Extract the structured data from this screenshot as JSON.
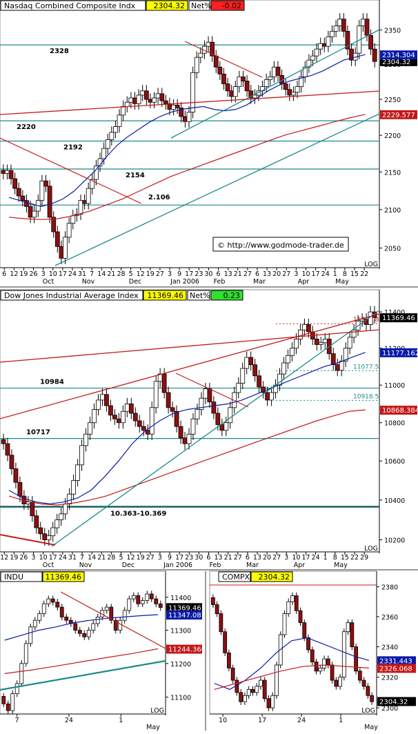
{
  "watermark": "© http://www.godmode-trader.de",
  "colors": {
    "up_candle": "#ffffff",
    "down_candle": "#8b1010",
    "ma_blue": "#0a1aa8",
    "ma_red": "#c41818",
    "teal": "#1b8a8a",
    "value_box_yellow": "#ffff00",
    "net_neg": "#ff2020",
    "net_pos": "#30e030"
  },
  "panels": [
    {
      "id": "nasdaq-daily",
      "title": "Nasdaq Combined Composite Indx",
      "value": "2304.32",
      "net_label": "Net%",
      "net_value": "-0.02",
      "price_tag": "2304.32",
      "ma_tags": [
        {
          "text": "2314.304",
          "color": "#0a1aa8"
        },
        {
          "text": "2229.577",
          "color": "#c41818"
        }
      ],
      "levels": [
        {
          "label": "2328"
        },
        {
          "label": "2220"
        },
        {
          "label": "2192"
        },
        {
          "label": "2154"
        },
        {
          "label": "2.106"
        }
      ],
      "x_ticks": [
        "6",
        "12",
        "19",
        "26",
        "3",
        "10",
        "17",
        "24",
        "31",
        "7",
        "14",
        "21",
        "28",
        "5",
        "12",
        "19",
        "27",
        "3",
        "9",
        "17",
        "23",
        "30",
        "6",
        "13",
        "21",
        "27",
        "6",
        "13",
        "20",
        "27",
        "3",
        "10",
        "17",
        "24",
        "1",
        "8",
        "15",
        "22"
      ],
      "month_labels": [
        "Oct",
        "Nov",
        "Dec",
        "Jan 2006",
        "Feb",
        "Mar",
        "Apr",
        "May"
      ],
      "log_label": "LOG",
      "chart_data": {
        "type": "candlestick",
        "title": "Nasdaq Combined Composite Indx",
        "y_ticks": [
          2050,
          2100,
          2150,
          2200,
          2250,
          2300,
          2350
        ],
        "ylim": [
          2025,
          2380
        ],
        "scale": "log",
        "last_close": 2304.32,
        "net_pct": -0.02,
        "series": [
          {
            "name": "price",
            "values": [
              2148,
              2152,
              2141,
              2128,
              2118,
              2112,
              2104,
              2090,
              2098,
              2112,
              2138,
              2131,
              2090,
              2071,
              2052,
              2037,
              2064,
              2082,
              2092,
              2094,
              2112,
              2108,
              2128,
              2140,
              2158,
              2168,
              2182,
              2194,
              2204,
              2212,
              2228,
              2240,
              2246,
              2252,
              2244,
              2256,
              2262,
              2250,
              2246,
              2252,
              2258,
              2248,
              2244,
              2236,
              2242,
              2238,
              2226,
              2219,
              2232,
              2288,
              2310,
              2316,
              2326,
              2332,
              2312,
              2296,
              2286,
              2272,
              2262,
              2254,
              2268,
              2282,
              2276,
              2262,
              2252,
              2256,
              2262,
              2268,
              2278,
              2282,
              2296,
              2284,
              2272,
              2264,
              2256,
              2260,
              2268,
              2282,
              2296,
              2306,
              2312,
              2322,
              2330,
              2326,
              2340,
              2348,
              2356,
              2366,
              2348,
              2322,
              2306,
              2316,
              2356,
              2366,
              2342,
              2322,
              2304
            ]
          },
          {
            "name": "ma_blue",
            "values": [
              2116,
              2112,
              2108,
              2104,
              2108,
              2114,
              2124,
              2138,
              2152,
              2170,
              2186,
              2198,
              2208,
              2218,
              2226,
              2232,
              2236,
              2238,
              2240,
              2236,
              2234,
              2236,
              2242,
              2252,
              2262,
              2270,
              2276,
              2280,
              2284,
              2290,
              2298,
              2306,
              2310,
              2314
            ]
          },
          {
            "name": "ma_red",
            "values": [
              2090,
              2088,
              2087,
              2088,
              2092,
              2098,
              2106,
              2114,
              2124,
              2134,
              2144,
              2152,
              2160,
              2168,
              2176,
              2184,
              2192,
              2200,
              2206,
              2212,
              2218,
              2224,
              2229
            ]
          }
        ]
      }
    },
    {
      "id": "dow-daily",
      "title": "Dow Jones Industrial Average Index",
      "value": "11369.46",
      "net_label": "Net%",
      "net_value": "0.23",
      "price_tag": "11369.46",
      "ma_tags": [
        {
          "text": "11177.162",
          "color": "#0a1aa8"
        },
        {
          "text": "10868.384",
          "color": "#c41818"
        }
      ],
      "levels": [
        {
          "label": "10984"
        },
        {
          "label": "10717"
        },
        {
          "label": "10.363-10.369"
        },
        {
          "label": "11334.8"
        },
        {
          "label": "11077.5"
        },
        {
          "label": "10918.5"
        }
      ],
      "x_ticks": [
        "12",
        "19",
        "26",
        "3",
        "10",
        "17",
        "24",
        "31",
        "7",
        "14",
        "21",
        "28",
        "5",
        "12",
        "19",
        "27",
        "3",
        "9",
        "17",
        "23",
        "30",
        "6",
        "13",
        "21",
        "27",
        "6",
        "13",
        "20",
        "27",
        "3",
        "10",
        "17",
        "24",
        "1",
        "8",
        "15",
        "22",
        "29"
      ],
      "month_labels": [
        "Oct",
        "Nov",
        "Dec",
        "Jan 2006",
        "Feb",
        "Mar",
        "Apr",
        "May"
      ],
      "log_label": "LOG",
      "chart_data": {
        "type": "candlestick",
        "title": "Dow Jones Industrial Average Index",
        "y_ticks": [
          10200,
          10400,
          10600,
          10800,
          11000,
          11200,
          11400
        ],
        "ylim": [
          10140,
          11470
        ],
        "scale": "log",
        "last_close": 11369.46,
        "net_pct": 0.23,
        "series": [
          {
            "name": "price",
            "values": [
              10690,
              10630,
              10560,
              10490,
              10420,
              10380,
              10390,
              10320,
              10260,
              10230,
              10200,
              10220,
              10260,
              10300,
              10330,
              10380,
              10430,
              10500,
              10580,
              10680,
              10740,
              10800,
              10870,
              10920,
              10950,
              10890,
              10840,
              10820,
              10800,
              10860,
              10900,
              10850,
              10810,
              10780,
              10760,
              10740,
              10880,
              11020,
              11060,
              10960,
              10880,
              10860,
              10780,
              10720,
              10690,
              10740,
              10820,
              10870,
              10930,
              10980,
              10910,
              10850,
              10790,
              10760,
              10800,
              10880,
              10960,
              11010,
              11090,
              11150,
              11110,
              11050,
              10990,
              10960,
              10920,
              10960,
              11000,
              11060,
              11120,
              11160,
              11200,
              11250,
              11300,
              11330,
              11290,
              11250,
              11220,
              11230,
              11250,
              11170,
              11110,
              11080,
              11130,
              11200,
              11260,
              11300,
              11350,
              11360,
              11330,
              11400,
              11369
            ]
          },
          {
            "name": "ma_blue",
            "values": [
              10450,
              10410,
              10390,
              10380,
              10390,
              10410,
              10450,
              10520,
              10600,
              10690,
              10760,
              10810,
              10850,
              10870,
              10880,
              10890,
              10900,
              10920,
              10950,
              10980,
              11010,
              11040,
              11070,
              11100,
              11120,
              11150,
              11177
            ]
          },
          {
            "name": "ma_red",
            "values": [
              10420,
              10395,
              10380,
              10375,
              10385,
              10400,
              10420,
              10450,
              10480,
              10510,
              10540,
              10570,
              10600,
              10630,
              10660,
              10690,
              10720,
              10750,
              10780,
              10810,
              10835,
              10860,
              10868
            ]
          }
        ]
      }
    },
    {
      "id": "indu-intraday",
      "title": "INDU",
      "value": "11369.46",
      "price_tag": "11369.46",
      "ma_tags": [
        {
          "text": "11347.083",
          "color": "#0a1aa8"
        },
        {
          "text": "11244.366",
          "color": "#c41818"
        }
      ],
      "x_ticks": [
        "7",
        "24",
        "1"
      ],
      "month_labels": [
        "May"
      ],
      "log_label": "LOG",
      "chart_data": {
        "type": "candlestick",
        "title": "INDU",
        "y_ticks": [
          11100,
          11200,
          11300,
          11400
        ],
        "ylim": [
          11050,
          11450
        ],
        "scale": "log",
        "last_close": 11369.46,
        "series": [
          {
            "name": "price",
            "values": [
              11080,
              11060,
              11110,
              11140,
              11200,
              11260,
              11310,
              11330,
              11350,
              11380,
              11395,
              11385,
              11370,
              11340,
              11330,
              11320,
              11300,
              11290,
              11280,
              11300,
              11320,
              11340,
              11360,
              11370,
              11330,
              11300,
              11330,
              11360,
              11395,
              11405,
              11380,
              11390,
              11410,
              11395,
              11380,
              11369
            ]
          },
          {
            "name": "ma_blue",
            "values": [
              11270,
              11285,
              11300,
              11310,
              11322,
              11330,
              11336,
              11340,
              11344,
              11347
            ]
          },
          {
            "name": "ma_red",
            "values": [
              11170,
              11180,
              11192,
              11205,
              11218,
              11230,
              11244
            ]
          }
        ]
      }
    },
    {
      "id": "compx-intraday",
      "title": "COMPX",
      "value": "2304.32",
      "price_tag": "2304.32",
      "ma_tags": [
        {
          "text": "2331.443",
          "color": "#0a1aa8"
        },
        {
          "text": "2326.068",
          "color": "#c41818"
        }
      ],
      "x_ticks": [
        "10",
        "17",
        "24",
        "1"
      ],
      "month_labels": [
        "May"
      ],
      "log_label": "LOG",
      "chart_data": {
        "type": "candlestick",
        "title": "COMPX",
        "y_ticks": [
          2300,
          2320,
          2340,
          2360,
          2380
        ],
        "ylim": [
          2296,
          2384
        ],
        "scale": "log",
        "last_close": 2304.32,
        "series": [
          {
            "name": "price",
            "values": [
              2368,
              2362,
              2350,
              2336,
              2326,
              2318,
              2310,
              2304,
              2308,
              2312,
              2310,
              2314,
              2318,
              2306,
              2300,
              2308,
              2328,
              2348,
              2362,
              2370,
              2374,
              2364,
              2356,
              2346,
              2338,
              2330,
              2324,
              2326,
              2332,
              2328,
              2318,
              2314,
              2320,
              2350,
              2356,
              2340,
              2324,
              2318,
              2314,
              2308,
              2304
            ]
          },
          {
            "name": "ma_blue",
            "values": [
              2316,
              2312,
              2318,
              2326,
              2336,
              2344,
              2346,
              2342,
              2338,
              2334,
              2331
            ]
          },
          {
            "name": "ma_red",
            "values": [
              2312,
              2316,
              2320,
              2324,
              2327,
              2328,
              2327,
              2326
            ]
          }
        ]
      }
    }
  ]
}
